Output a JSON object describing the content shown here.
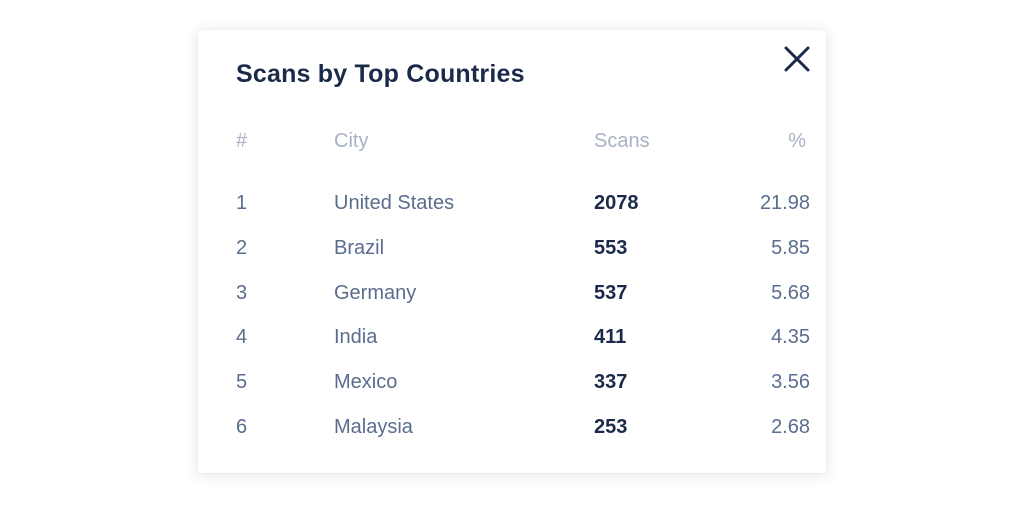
{
  "modal": {
    "title": "Scans by Top Countries",
    "close_icon": "close-icon"
  },
  "table": {
    "headers": {
      "rank": "#",
      "city": "City",
      "scans": "Scans",
      "percent": "%"
    },
    "rows": [
      {
        "rank": "1",
        "city": "United States",
        "scans": "2078",
        "percent": "21.98"
      },
      {
        "rank": "2",
        "city": "Brazil",
        "scans": "553",
        "percent": "5.85"
      },
      {
        "rank": "3",
        "city": "Germany",
        "scans": "537",
        "percent": "5.68"
      },
      {
        "rank": "4",
        "city": "India",
        "scans": "411",
        "percent": "4.35"
      },
      {
        "rank": "5",
        "city": "Mexico",
        "scans": "337",
        "percent": "3.56"
      },
      {
        "rank": "6",
        "city": "Malaysia",
        "scans": "253",
        "percent": "2.68"
      }
    ]
  },
  "colors": {
    "title": "#1b2a4a",
    "header_text": "#a8b2c2",
    "body_text": "#5a6d8e",
    "scans_text": "#1b2a4a"
  }
}
